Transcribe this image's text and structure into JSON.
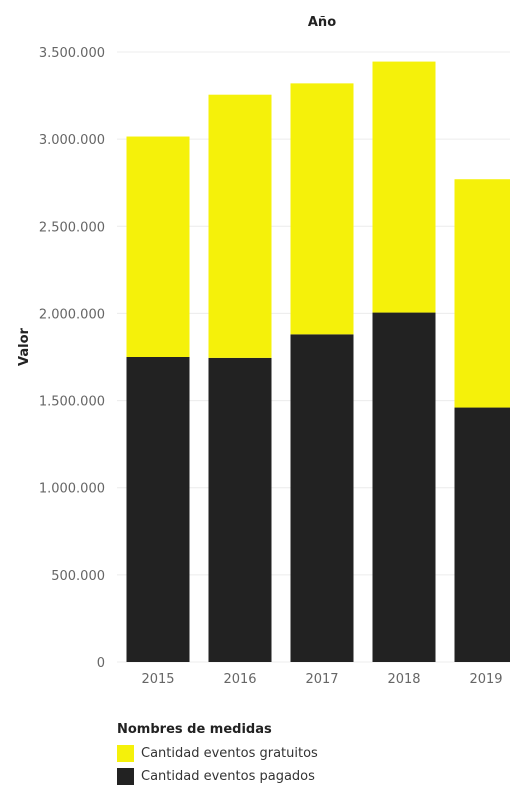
{
  "chart_data": {
    "type": "bar",
    "stacked": true,
    "title": "Año",
    "xlabel": "",
    "ylabel": "Valor",
    "categories": [
      "2015",
      "2016",
      "2017",
      "2018",
      "2019"
    ],
    "series": [
      {
        "name": "Cantidad eventos pagados",
        "color": "#222222",
        "values": [
          1750000,
          1745000,
          1880000,
          2005000,
          1460000
        ]
      },
      {
        "name": "Cantidad eventos gratuitos",
        "color": "#f5f10a",
        "values": [
          1265000,
          1510000,
          1440000,
          1440000,
          1310000
        ]
      }
    ],
    "ylim": [
      0,
      3500000
    ],
    "y_ticks": [
      0,
      500000,
      1000000,
      1500000,
      2000000,
      2500000,
      3000000,
      3500000
    ],
    "y_tick_labels": [
      "0",
      "500.000",
      "1.000.000",
      "1.500.000",
      "2.000.000",
      "2.500.000",
      "3.000.000",
      "3.500.000"
    ],
    "grid": true,
    "legend_position": "bottom-left"
  },
  "legend": {
    "title": "Nombres de medidas",
    "items": [
      {
        "label": "Cantidad eventos gratuitos",
        "color": "#f5f10a"
      },
      {
        "label": "Cantidad eventos pagados",
        "color": "#222222"
      }
    ]
  }
}
